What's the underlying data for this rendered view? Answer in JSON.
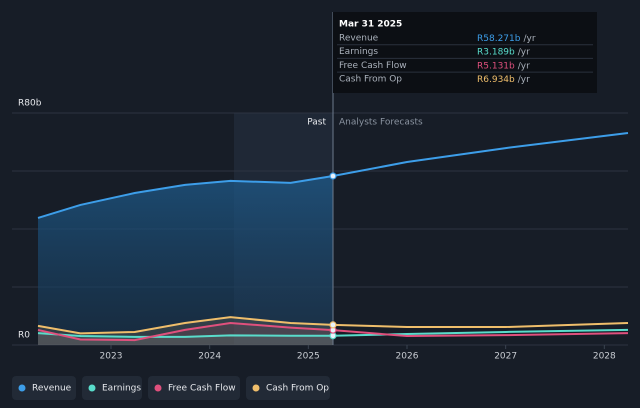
{
  "chart_data": {
    "type": "line",
    "x": [
      2022.26,
      2022.69,
      2023.24,
      2023.75,
      2024.21,
      2024.82,
      2025.25,
      2026.0,
      2027.0,
      2028.24
    ],
    "xlim": [
      2022.26,
      2028.24
    ],
    "xticks": [
      2023,
      2024,
      2025,
      2026,
      2027,
      2028
    ],
    "ylim": [
      0,
      80
    ],
    "yticks": [
      {
        "value": 0,
        "label": "R0"
      },
      20,
      40,
      60,
      {
        "value": 80,
        "label": "R80b"
      }
    ],
    "grid": true,
    "annotations": [
      "Past",
      "Analysts Forecasts"
    ],
    "series": [
      {
        "name": "Revenue",
        "color": "#3d9ee9",
        "values": [
          43.8,
          48.3,
          52.4,
          55.2,
          56.6,
          55.9,
          58.271,
          63.1,
          67.9,
          73.1
        ]
      },
      {
        "name": "Earnings",
        "color": "#59dccb",
        "values": [
          4.1,
          3.1,
          2.8,
          2.8,
          3.3,
          3.2,
          3.189,
          3.8,
          4.5,
          5.2
        ]
      },
      {
        "name": "Free Cash Flow",
        "color": "#e0507d",
        "values": [
          5.2,
          1.9,
          1.7,
          5.2,
          7.6,
          6.0,
          5.131,
          3.1,
          3.4,
          4.1
        ]
      },
      {
        "name": "Cash From Op",
        "color": "#efbe6b",
        "values": [
          6.6,
          4.0,
          4.5,
          7.6,
          9.6,
          7.6,
          6.934,
          6.2,
          6.2,
          7.6
        ]
      }
    ],
    "tooltip": {
      "date": "Mar 31 2025",
      "index": 6,
      "suffix": "/yr",
      "labels": [
        "R58.271b",
        "R3.189b",
        "R5.131b",
        "R6.934b"
      ]
    }
  }
}
